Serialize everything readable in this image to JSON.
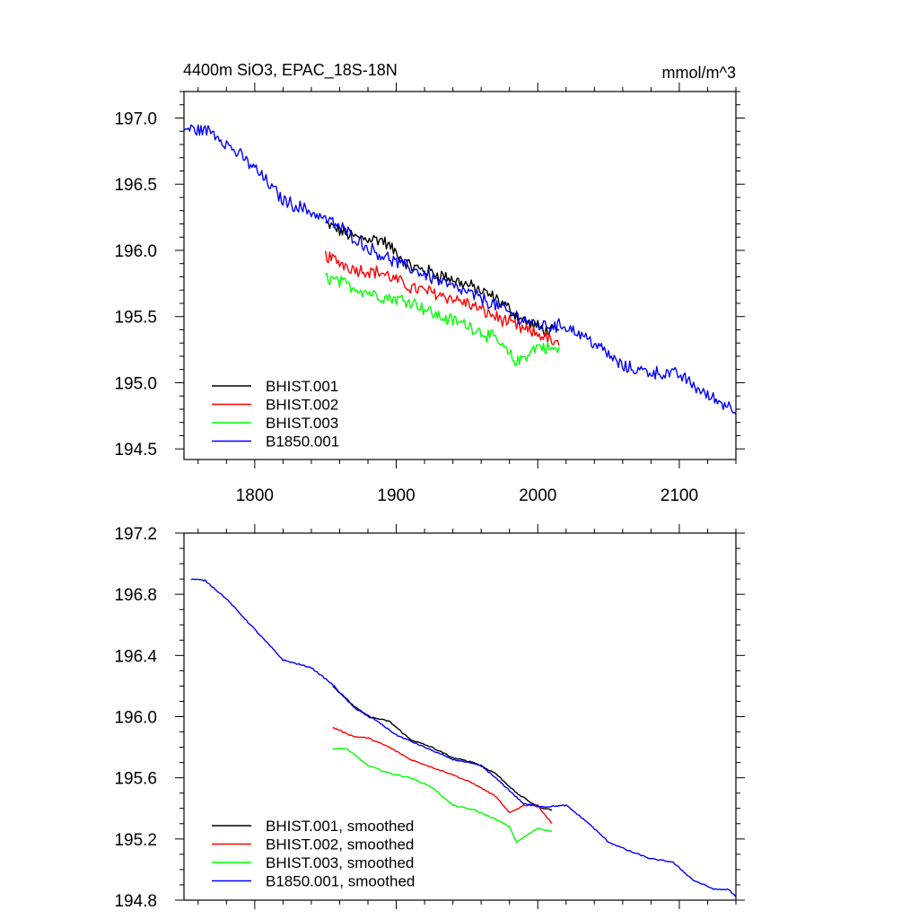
{
  "chart_data": [
    {
      "type": "line",
      "title": "4400m SiO3, EPAC_18S-18N",
      "units": "mmol/m^3",
      "xlim": [
        1750,
        2140
      ],
      "ylim": [
        194.42,
        197.2
      ],
      "x_ticks": [
        1800,
        1900,
        2000,
        2100
      ],
      "x_tick_labels": [
        "1800",
        "1900",
        "2000",
        "2100"
      ],
      "y_ticks": [
        194.5,
        195.0,
        195.5,
        196.0,
        196.5,
        197.0
      ],
      "y_tick_labels": [
        "194.5",
        "195.0",
        "195.5",
        "196.0",
        "196.5",
        "197.0"
      ],
      "x_minor_step": 20,
      "y_minor_step": 0.1,
      "legend_position": "bottom-left",
      "noisy": true,
      "series": [
        {
          "name": "BHIST.001",
          "color": "#000000",
          "x": [
            1850,
            1870,
            1890,
            1910,
            1930,
            1950,
            1970,
            1990,
            2005,
            2015
          ],
          "y": [
            196.2,
            196.1,
            196.08,
            195.88,
            195.82,
            195.74,
            195.64,
            195.47,
            195.4,
            195.38
          ]
        },
        {
          "name": "BHIST.002",
          "color": "#ff0000",
          "x": [
            1850,
            1870,
            1890,
            1910,
            1930,
            1950,
            1970,
            1990,
            2005,
            2015
          ],
          "y": [
            195.96,
            195.86,
            195.83,
            195.72,
            195.67,
            195.6,
            195.5,
            195.4,
            195.35,
            195.27
          ]
        },
        {
          "name": "BHIST.003",
          "color": "#00ff00",
          "x": [
            1850,
            1870,
            1890,
            1910,
            1930,
            1950,
            1970,
            1985,
            2000,
            2015
          ],
          "y": [
            195.8,
            195.72,
            195.65,
            195.62,
            195.5,
            195.44,
            195.33,
            195.15,
            195.28,
            195.24
          ]
        },
        {
          "name": "B1850.001",
          "color": "#0000ff",
          "x": [
            1750,
            1770,
            1800,
            1820,
            1840,
            1860,
            1880,
            1900,
            1920,
            1940,
            1960,
            1980,
            2000,
            2020,
            2040,
            2060,
            2080,
            2100,
            2120,
            2140
          ],
          "y": [
            196.92,
            196.9,
            196.62,
            196.38,
            196.29,
            196.18,
            196.02,
            195.91,
            195.82,
            195.72,
            195.64,
            195.53,
            195.43,
            195.43,
            195.3,
            195.12,
            195.08,
            195.06,
            194.9,
            194.8
          ]
        }
      ]
    },
    {
      "type": "line",
      "xlim": [
        1750,
        2140
      ],
      "ylim": [
        194.8,
        197.2
      ],
      "x_ticks": [
        1800,
        1900,
        2000,
        2100
      ],
      "y_ticks": [
        194.8,
        195.2,
        195.6,
        196.0,
        196.4,
        196.8,
        197.2
      ],
      "y_tick_labels": [
        "194.8",
        "195.2",
        "195.6",
        "196.0",
        "196.4",
        "196.8",
        "197.2"
      ],
      "x_minor_step": 20,
      "y_minor_step": 0.1,
      "legend_position": "bottom-left",
      "noisy": false,
      "series": [
        {
          "name": "BHIST.001, smoothed",
          "color": "#000000",
          "x": [
            1855,
            1870,
            1880,
            1895,
            1910,
            1925,
            1940,
            1955,
            1970,
            1985,
            2000,
            2010
          ],
          "y": [
            196.2,
            196.07,
            196.0,
            195.97,
            195.85,
            195.8,
            195.73,
            195.7,
            195.63,
            195.5,
            195.41,
            195.39
          ]
        },
        {
          "name": "BHIST.002, smoothed",
          "color": "#ff0000",
          "x": [
            1855,
            1870,
            1880,
            1895,
            1910,
            1925,
            1940,
            1955,
            1970,
            1980,
            1990,
            2000,
            2010
          ],
          "y": [
            195.93,
            195.87,
            195.86,
            195.8,
            195.72,
            195.67,
            195.62,
            195.56,
            195.48,
            195.37,
            195.42,
            195.42,
            195.3
          ]
        },
        {
          "name": "BHIST.003, smoothed",
          "color": "#00ff00",
          "x": [
            1855,
            1865,
            1880,
            1895,
            1910,
            1925,
            1940,
            1955,
            1970,
            1980,
            1985,
            1995,
            2000,
            2010
          ],
          "y": [
            195.79,
            195.79,
            195.68,
            195.63,
            195.6,
            195.54,
            195.42,
            195.39,
            195.33,
            195.28,
            195.18,
            195.24,
            195.27,
            195.25
          ]
        },
        {
          "name": "B1850.001, smoothed",
          "color": "#0000ff",
          "x": [
            1755,
            1765,
            1780,
            1800,
            1820,
            1840,
            1855,
            1870,
            1885,
            1900,
            1920,
            1940,
            1960,
            1975,
            1990,
            2005,
            2020,
            2035,
            2050,
            2065,
            2080,
            2095,
            2110,
            2125,
            2135,
            2140
          ],
          "y": [
            196.9,
            196.89,
            196.77,
            196.57,
            196.37,
            196.32,
            196.21,
            196.06,
            195.98,
            195.88,
            195.8,
            195.72,
            195.68,
            195.56,
            195.43,
            195.41,
            195.42,
            195.31,
            195.18,
            195.12,
            195.07,
            195.05,
            194.93,
            194.87,
            194.87,
            194.82
          ]
        }
      ]
    }
  ]
}
